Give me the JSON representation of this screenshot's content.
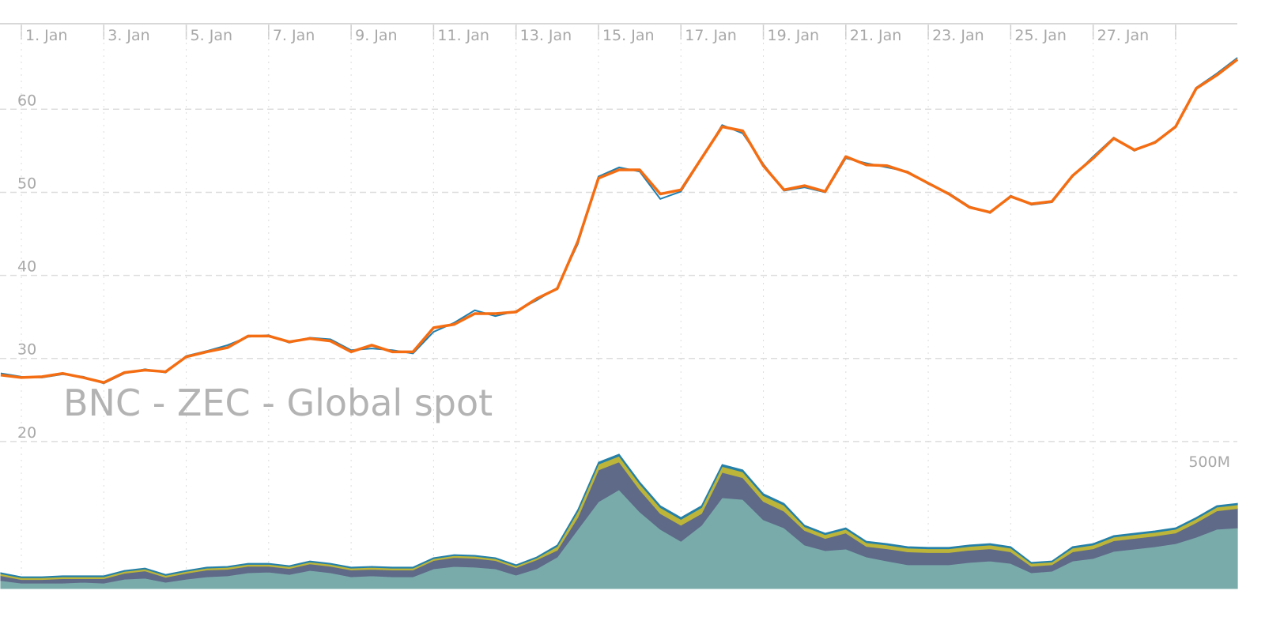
{
  "chart_data": [
    {
      "type": "line",
      "title": "BNC - ZEC - Global spot",
      "x": [
        0.5,
        1,
        1.5,
        2,
        2.5,
        3,
        3.5,
        4,
        4.5,
        5,
        5.5,
        6,
        6.5,
        7,
        7.5,
        8,
        8.5,
        9,
        9.5,
        10,
        10.5,
        11,
        11.5,
        12,
        12.5,
        13,
        13.5,
        14,
        14.5,
        15,
        15.5,
        16,
        16.5,
        17,
        17.5,
        18,
        18.5,
        19,
        19.5,
        20,
        20.5,
        21,
        21.5,
        22,
        22.5,
        23,
        23.5,
        24,
        24.5,
        25,
        25.5,
        26,
        26.5,
        27,
        27.5,
        28,
        28.5,
        29,
        29.5,
        30,
        30.5
      ],
      "xlim": [
        0.5,
        30.5
      ],
      "xticks": [
        {
          "value": 1,
          "label": "1. Jan"
        },
        {
          "value": 3,
          "label": "3. Jan"
        },
        {
          "value": 5,
          "label": "5. Jan"
        },
        {
          "value": 7,
          "label": "7. Jan"
        },
        {
          "value": 9,
          "label": "9. Jan"
        },
        {
          "value": 11,
          "label": "11. Jan"
        },
        {
          "value": 13,
          "label": "13. Jan"
        },
        {
          "value": 15,
          "label": "15. Jan"
        },
        {
          "value": 17,
          "label": "17. Jan"
        },
        {
          "value": 19,
          "label": "19. Jan"
        },
        {
          "value": 21,
          "label": "21. Jan"
        },
        {
          "value": 23,
          "label": "23. Jan"
        },
        {
          "value": 25,
          "label": "25. Jan"
        },
        {
          "value": 27,
          "label": "27. Jan"
        },
        {
          "value": 29,
          "label": ""
        }
      ],
      "ylim": [
        2.3,
        70.3
      ],
      "yticks": [
        20,
        30,
        40,
        50,
        60
      ],
      "grid": true,
      "series": [
        {
          "color": "#1f7fb0",
          "values": [
            28.2,
            27.8,
            27.7,
            28.1,
            27.8,
            27.0,
            28.2,
            28.7,
            28.3,
            30.3,
            30.9,
            31.6,
            32.6,
            32.8,
            31.9,
            32.5,
            32.3,
            31.0,
            31.2,
            31.0,
            30.6,
            33.2,
            34.3,
            35.8,
            35.1,
            35.7,
            37.0,
            38.5,
            43.8,
            51.9,
            53.0,
            52.5,
            49.2,
            50.1,
            54.0,
            58.1,
            57.1,
            53.4,
            50.2,
            50.6,
            50.0,
            54.1,
            53.5,
            53.0,
            52.5,
            51.0,
            49.9,
            48.3,
            47.5,
            49.6,
            48.5,
            48.8,
            51.9,
            54.3,
            56.6,
            55.0,
            56.1,
            57.8,
            62.6,
            64.3,
            66.2
          ]
        },
        {
          "color": "#f46d12",
          "values": [
            28.0,
            27.7,
            27.8,
            28.2,
            27.7,
            27.1,
            28.3,
            28.6,
            28.4,
            30.2,
            30.8,
            31.3,
            32.7,
            32.7,
            32.0,
            32.4,
            32.1,
            30.8,
            31.6,
            30.8,
            30.8,
            33.7,
            34.1,
            35.4,
            35.4,
            35.6,
            37.2,
            38.4,
            44.1,
            51.7,
            52.7,
            52.7,
            49.8,
            50.3,
            54.1,
            57.9,
            57.4,
            53.2,
            50.3,
            50.8,
            50.1,
            54.3,
            53.3,
            53.2,
            52.4,
            51.1,
            49.8,
            48.2,
            47.6,
            49.5,
            48.6,
            48.9,
            52.0,
            54.1,
            56.5,
            55.1,
            56.0,
            57.9,
            62.5,
            64.1,
            66.0
          ]
        }
      ]
    },
    {
      "type": "stacked-area",
      "y2lim": [
        0,
        2400000000
      ],
      "y2ticks": [
        {
          "value": 500000000,
          "label": "500M"
        }
      ],
      "series": [
        {
          "color": "#7aabab",
          "axis": "y2",
          "values": [
            34000000,
            23000000,
            23000000,
            23000000,
            27000000,
            23000000,
            40000000,
            44000000,
            27000000,
            40000000,
            50000000,
            54000000,
            67000000,
            70000000,
            60000000,
            77000000,
            67000000,
            50000000,
            54000000,
            50000000,
            50000000,
            84000000,
            94000000,
            91000000,
            84000000,
            57000000,
            84000000,
            134000000,
            252000000,
            369000000,
            420000000,
            326000000,
            252000000,
            201000000,
            269000000,
            386000000,
            379000000,
            292000000,
            258000000,
            185000000,
            161000000,
            168000000,
            134000000,
            117000000,
            101000000,
            101000000,
            101000000,
            111000000,
            117000000,
            107000000,
            67000000,
            74000000,
            117000000,
            128000000,
            158000000,
            168000000,
            178000000,
            191000000,
            218000000,
            252000000,
            258000000
          ]
        },
        {
          "color": "#5e6a88",
          "axis": "y2",
          "values": [
            21000000,
            15000000,
            15000000,
            19000000,
            15000000,
            19000000,
            25000000,
            31000000,
            21000000,
            25000000,
            29000000,
            28000000,
            28000000,
            25000000,
            25000000,
            28000000,
            28000000,
            29000000,
            28000000,
            29000000,
            29000000,
            35000000,
            38000000,
            38000000,
            35000000,
            32000000,
            38000000,
            29000000,
            51000000,
            135000000,
            118000000,
            94000000,
            67000000,
            68000000,
            50000000,
            108000000,
            92000000,
            78000000,
            71000000,
            62000000,
            52000000,
            68000000,
            45000000,
            52000000,
            55000000,
            52000000,
            52000000,
            52000000,
            52000000,
            49000000,
            28000000,
            27000000,
            39000000,
            41000000,
            45000000,
            45000000,
            45000000,
            45000000,
            62000000,
            78000000,
            82000000
          ]
        },
        {
          "color": "#bcb53a",
          "axis": "y2",
          "values": [
            8000000,
            8000000,
            8000000,
            8000000,
            8000000,
            8000000,
            8000000,
            8000000,
            8000000,
            8000000,
            8000000,
            8000000,
            8000000,
            8000000,
            8000000,
            8000000,
            8000000,
            8000000,
            8000000,
            8000000,
            8000000,
            8000000,
            8000000,
            8000000,
            8000000,
            8000000,
            8000000,
            16000000,
            25000000,
            25000000,
            25000000,
            25000000,
            25000000,
            25000000,
            25000000,
            25000000,
            25000000,
            25000000,
            25000000,
            16000000,
            16000000,
            16000000,
            16000000,
            16000000,
            16000000,
            16000000,
            16000000,
            16000000,
            16000000,
            16000000,
            12000000,
            12000000,
            16000000,
            16000000,
            16000000,
            16000000,
            16000000,
            16000000,
            16000000,
            16000000,
            16000000
          ]
        },
        {
          "color": "#2580a8",
          "axis": "y2",
          "values": [
            4000000,
            4000000,
            4000000,
            4000000,
            4000000,
            4000000,
            4000000,
            4000000,
            4000000,
            4000000,
            4000000,
            4000000,
            4000000,
            4000000,
            4000000,
            4000000,
            4000000,
            4000000,
            4000000,
            4000000,
            4000000,
            4000000,
            4000000,
            4000000,
            4000000,
            4000000,
            4000000,
            6000000,
            8000000,
            8000000,
            8000000,
            8000000,
            8000000,
            8000000,
            8000000,
            8000000,
            8000000,
            8000000,
            8000000,
            6000000,
            6000000,
            6000000,
            6000000,
            6000000,
            6000000,
            6000000,
            6000000,
            6000000,
            6000000,
            6000000,
            4000000,
            4000000,
            6000000,
            6000000,
            6000000,
            6000000,
            6000000,
            6000000,
            6000000,
            6000000,
            6000000
          ]
        }
      ]
    }
  ]
}
